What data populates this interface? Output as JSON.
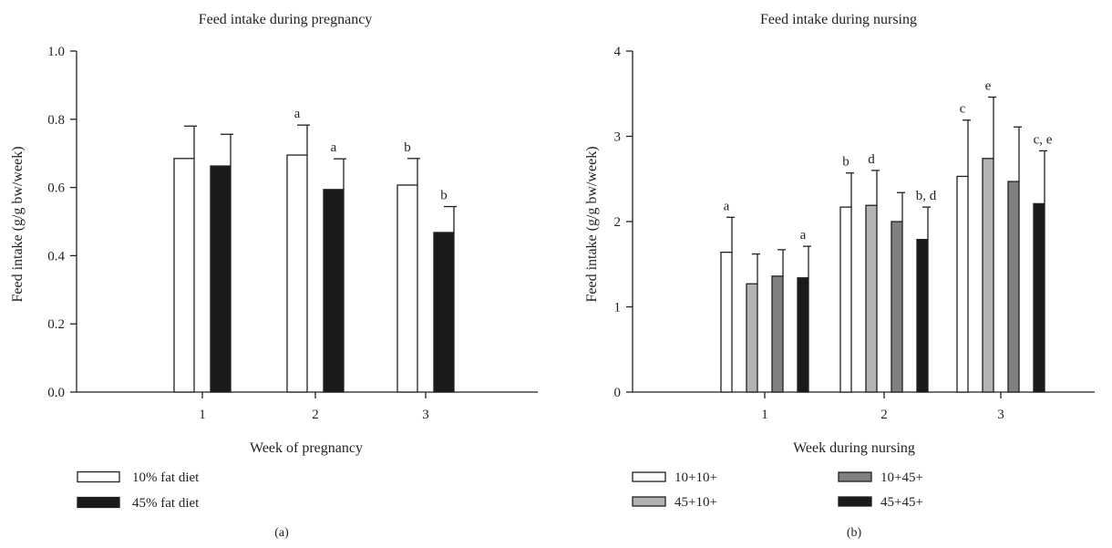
{
  "colors": {
    "axis": "#231f20",
    "white_fill": "#ffffff",
    "light_gray": "#b3b3b3",
    "dark_gray": "#808080",
    "black": "#1a1a1a"
  },
  "chart_data": [
    {
      "type": "bar",
      "panel_label": "(a)",
      "title": "Feed intake during pregnancy",
      "xlabel": "Week of pregnancy",
      "ylabel": "Feed intake (g/g bw/week)",
      "ylim": [
        0,
        1.0
      ],
      "yticks": [
        "0.0",
        "0.2",
        "0.4",
        "0.6",
        "0.8",
        "1.0"
      ],
      "ytick_values": [
        0,
        0.2,
        0.4,
        0.6,
        0.8,
        1.0
      ],
      "categories": [
        "1",
        "2",
        "3"
      ],
      "legend_position": "bottom-left",
      "series": [
        {
          "name": "10% fat diet",
          "color": "#ffffff",
          "values": [
            0.685,
            0.695,
            0.607
          ],
          "errors": [
            0.095,
            0.088,
            0.078
          ],
          "annotations": [
            "",
            "a",
            "b"
          ]
        },
        {
          "name": "45% fat diet",
          "color": "#1a1a1a",
          "values": [
            0.663,
            0.594,
            0.468
          ],
          "errors": [
            0.093,
            0.09,
            0.076
          ],
          "annotations": [
            "",
            "a",
            "b"
          ]
        }
      ]
    },
    {
      "type": "bar",
      "panel_label": "(b)",
      "title": "Feed intake during nursing",
      "xlabel": "Week during nursing",
      "ylabel": "Feed intake (g/g bw/week)",
      "ylim": [
        0,
        4
      ],
      "yticks": [
        "0",
        "1",
        "2",
        "3",
        "4"
      ],
      "ytick_values": [
        0,
        1,
        2,
        3,
        4
      ],
      "categories": [
        "1",
        "2",
        "3"
      ],
      "legend_position": "bottom",
      "series": [
        {
          "name": "10+10+",
          "color": "#ffffff",
          "values": [
            1.64,
            2.17,
            2.53
          ],
          "errors": [
            0.41,
            0.4,
            0.66
          ],
          "annotations": [
            "a",
            "b",
            "c"
          ]
        },
        {
          "name": "45+10+",
          "color": "#b3b3b3",
          "values": [
            1.27,
            2.19,
            2.74
          ],
          "errors": [
            0.35,
            0.41,
            0.72
          ],
          "annotations": [
            "",
            "d",
            "e"
          ]
        },
        {
          "name": "10+45+",
          "color": "#808080",
          "values": [
            1.36,
            2.0,
            2.47
          ],
          "errors": [
            0.31,
            0.34,
            0.64
          ],
          "annotations": [
            "",
            "",
            ""
          ]
        },
        {
          "name": "45+45+",
          "color": "#1a1a1a",
          "values": [
            1.34,
            1.79,
            2.21
          ],
          "errors": [
            0.37,
            0.38,
            0.62
          ],
          "annotations": [
            "a",
            "b, d",
            "c, e"
          ]
        }
      ]
    }
  ]
}
